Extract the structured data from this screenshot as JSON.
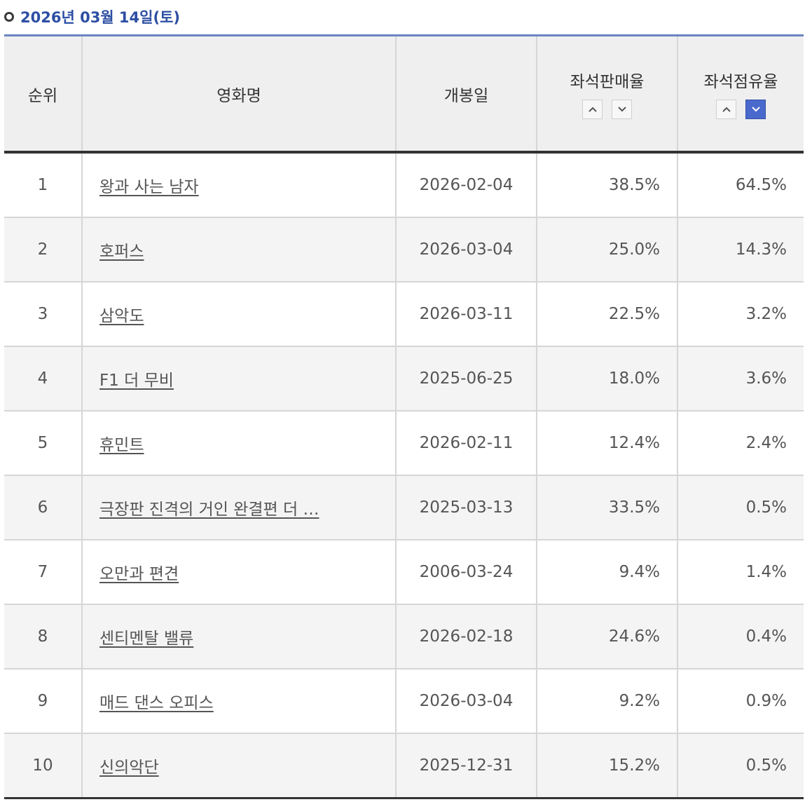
{
  "date_header": "2026년 03월 14일(토)",
  "columns": {
    "rank": "순위",
    "title": "영화명",
    "release_date": "개봉일",
    "seat_sales_rate": "좌석판매율",
    "seat_share_rate": "좌석점유율"
  },
  "sort_controls": {
    "seat_sales_rate": {
      "asc_icon": "chevron-up-icon",
      "desc_icon": "chevron-down-icon",
      "active": "none"
    },
    "seat_share_rate": {
      "asc_icon": "chevron-up-icon",
      "desc_icon": "chevron-down-icon",
      "active": "desc"
    }
  },
  "rows": [
    {
      "rank": "1",
      "title": "왕과 사는 남자",
      "release_date": "2026-02-04",
      "seat_sales_rate": "38.5%",
      "seat_share_rate": "64.5%"
    },
    {
      "rank": "2",
      "title": "호퍼스",
      "release_date": "2026-03-04",
      "seat_sales_rate": "25.0%",
      "seat_share_rate": "14.3%"
    },
    {
      "rank": "3",
      "title": "삼악도",
      "release_date": "2026-03-11",
      "seat_sales_rate": "22.5%",
      "seat_share_rate": "3.2%"
    },
    {
      "rank": "4",
      "title": "F1 더 무비",
      "release_date": "2025-06-25",
      "seat_sales_rate": "18.0%",
      "seat_share_rate": "3.6%"
    },
    {
      "rank": "5",
      "title": "휴민트",
      "release_date": "2026-02-11",
      "seat_sales_rate": "12.4%",
      "seat_share_rate": "2.4%"
    },
    {
      "rank": "6",
      "title": "극장판 진격의 거인 완결편 더 …",
      "release_date": "2025-03-13",
      "seat_sales_rate": "33.5%",
      "seat_share_rate": "0.5%"
    },
    {
      "rank": "7",
      "title": "오만과 편견",
      "release_date": "2006-03-24",
      "seat_sales_rate": "9.4%",
      "seat_share_rate": "1.4%"
    },
    {
      "rank": "8",
      "title": "센티멘탈 밸류",
      "release_date": "2026-02-18",
      "seat_sales_rate": "24.6%",
      "seat_share_rate": "0.4%"
    },
    {
      "rank": "9",
      "title": "매드 댄스 오피스",
      "release_date": "2026-03-04",
      "seat_sales_rate": "9.2%",
      "seat_share_rate": "0.9%"
    },
    {
      "rank": "10",
      "title": "신의악단",
      "release_date": "2025-12-31",
      "seat_sales_rate": "15.2%",
      "seat_share_rate": "0.5%"
    }
  ],
  "colors": {
    "accent": "#2d4ea3",
    "header_rule": "#6a84c2",
    "active_sort": "#4a69cc"
  }
}
